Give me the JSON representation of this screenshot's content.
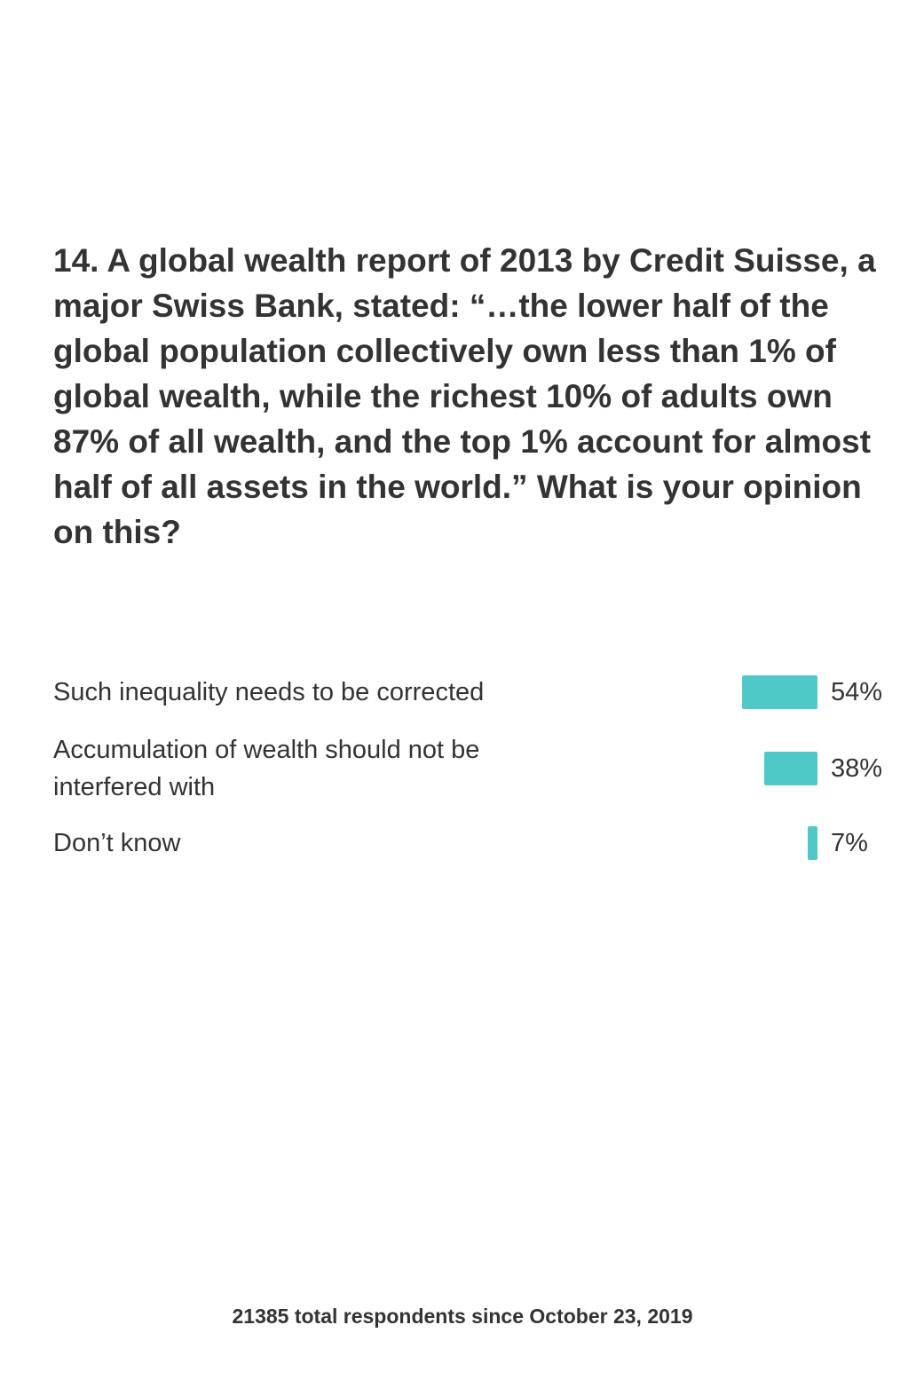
{
  "chart_data": {
    "type": "bar",
    "orientation": "horizontal",
    "title": "14. A global wealth report of 2013 by Credit Suisse, a major Swiss Bank, stated: “…the lower half of the global population collectively own less than 1% of global wealth, while the richest 10% of adults own 87% of all wealth, and the top 1% account for almost half of all assets in the world.” What is your opinion on this?",
    "categories": [
      "Such inequality needs to be corrected",
      "Accumulation of wealth should not be interfered with",
      "Don’t know"
    ],
    "values": [
      54,
      38,
      7
    ],
    "value_labels": [
      "54%",
      "38%",
      "7%"
    ],
    "unit": "%",
    "bar_color": "#4ec9c7",
    "footer": "21385 total respondents since October 23, 2019"
  }
}
